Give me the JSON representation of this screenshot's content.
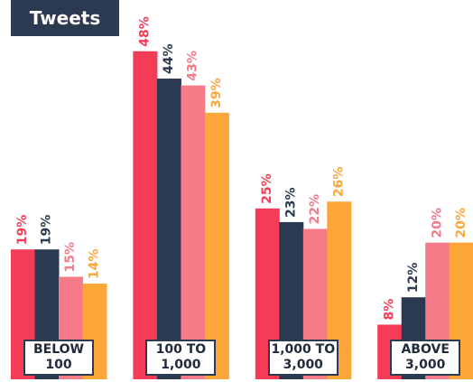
{
  "chart_data": {
    "type": "bar",
    "title": "Tweets",
    "categories": [
      "BELOW\n100",
      "100 TO\n1,000",
      "1,000 TO\n3,000",
      "ABOVE\n3,000"
    ],
    "series": [
      {
        "color": "#f43c57",
        "values": [
          19,
          48,
          25,
          8
        ],
        "value_labels": [
          "19%",
          "48%",
          "25%",
          "8%"
        ]
      },
      {
        "color": "#2b3a50",
        "values": [
          19,
          44,
          23,
          12
        ],
        "value_labels": [
          "19%",
          "44%",
          "23%",
          "12%"
        ]
      },
      {
        "color": "#f67a88",
        "values": [
          15,
          43,
          22,
          20
        ],
        "value_labels": [
          "15%",
          "43%",
          "22%",
          "20%"
        ]
      },
      {
        "color": "#fca63a",
        "values": [
          14,
          39,
          26,
          20
        ],
        "value_labels": [
          "14%",
          "39%",
          "26%",
          "20%"
        ]
      }
    ],
    "ylim": [
      0,
      55.5
    ]
  }
}
